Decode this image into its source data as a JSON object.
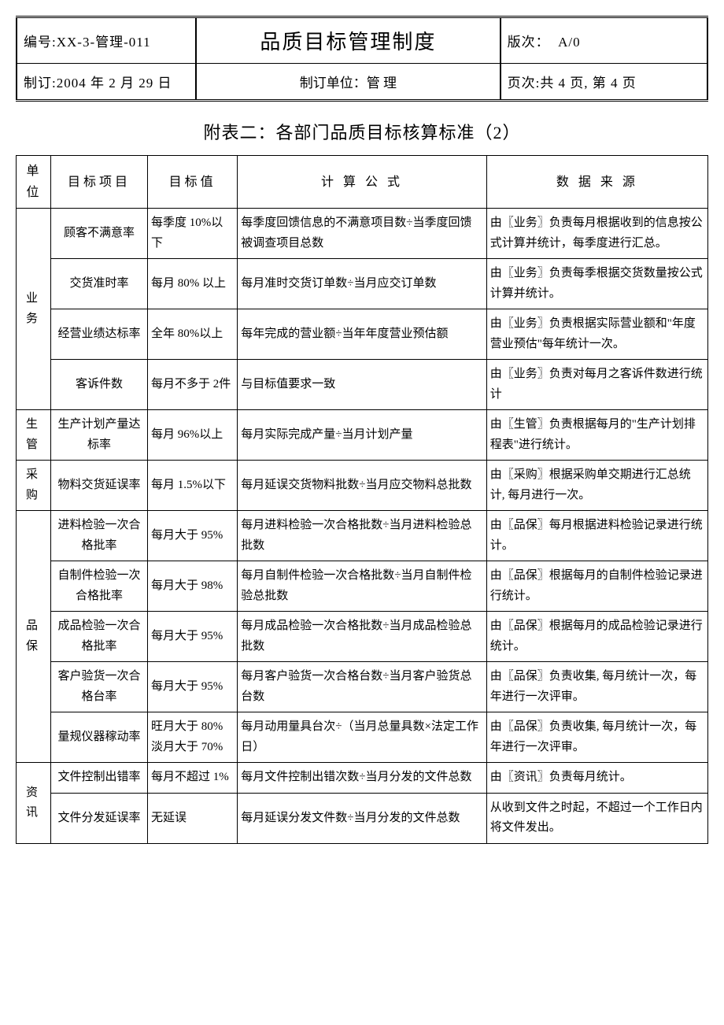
{
  "header": {
    "doc_no_label": "编号:",
    "doc_no": "XX-3-管理-011",
    "title": "品质目标管理制度",
    "version_label": "版次：",
    "version": "A/0",
    "date_label": "制订:",
    "date": "2004 年 2 月 29 日",
    "dept_label": "制订单位：",
    "dept": "管 理",
    "page_label": "页次:",
    "page": "共 4 页, 第 4 页"
  },
  "subtitle": "附表二：各部门品质目标核算标准（2）",
  "columns": {
    "unit": "单 位",
    "item": "目标项目",
    "target": "目标值",
    "formula": "计 算 公 式",
    "source": "数 据 来 源"
  },
  "groups": [
    {
      "unit": "业 务",
      "rows": [
        {
          "item": "顾客不满意率",
          "target": "每季度 10%以下",
          "formula": "每季度回馈信息的不满意项目数÷当季度回馈被调查项目总数",
          "source": "由〖业务〗负责每月根据收到的信息按公式计算并统计，每季度进行汇总。"
        },
        {
          "item": "交货准时率",
          "target": "每月 80% 以上",
          "formula": "每月准时交货订单数÷当月应交订单数",
          "source": "由〖业务〗负责每季根据交货数量按公式计算并统计。"
        },
        {
          "item": "经营业绩达标率",
          "target": "全年 80%以上",
          "formula": "每年完成的营业额÷当年年度营业预估额",
          "source": "由〖业务〗负责根据实际营业额和\"年度营业预估\"每年统计一次。"
        },
        {
          "item": "客诉件数",
          "target": "每月不多于 2件",
          "formula": "与目标值要求一致",
          "source": "由〖业务〗负责对每月之客诉件数进行统计"
        }
      ]
    },
    {
      "unit": "生 管",
      "rows": [
        {
          "item": "生产计划产量达标率",
          "target": "每月 96%以上",
          "formula": "每月实际完成产量÷当月计划产量",
          "source": "由〖生管〗负责根据每月的\"生产计划排程表\"进行统计。"
        }
      ]
    },
    {
      "unit": "采 购",
      "rows": [
        {
          "item": "物料交货延误率",
          "target": "每月 1.5%以下",
          "formula": "每月延误交货物料批数÷当月应交物料总批数",
          "source": "由〖采购〗根据采购单交期进行汇总统计, 每月进行一次。"
        }
      ]
    },
    {
      "unit": "品保",
      "rows": [
        {
          "item": "进料检验一次合格批率",
          "target": "每月大于 95%",
          "formula": "每月进料检验一次合格批数÷当月进料检验总批数",
          "source": "由〖品保〗每月根据进料检验记录进行统计。"
        },
        {
          "item": "自制件检验一次合格批率",
          "target": "每月大于 98%",
          "formula": "每月自制件检验一次合格批数÷当月自制件检验总批数",
          "source": "由〖品保〗根据每月的自制件检验记录进行统计。"
        },
        {
          "item": "成品检验一次合格批率",
          "target": "每月大于 95%",
          "formula": "每月成品检验一次合格批数÷当月成品检验总批数",
          "source": "由〖品保〗根据每月的成品检验记录进行统计。"
        },
        {
          "item": "客户验货一次合格台率",
          "target": "每月大于 95%",
          "formula": "每月客户验货一次合格台数÷当月客户验货总台数",
          "source": "由〖品保〗负责收集, 每月统计一次，每年进行一次评审。"
        },
        {
          "item": "量规仪器稼动率",
          "target": "旺月大于 80% 淡月大于 70%",
          "formula": "每月动用量具台次÷（当月总量具数×法定工作日）",
          "source": "由〖品保〗负责收集, 每月统计一次，每年进行一次评审。"
        }
      ]
    },
    {
      "unit": "资 讯",
      "rows": [
        {
          "item": "文件控制出错率",
          "target": "每月不超过 1%",
          "formula": "每月文件控制出错次数÷当月分发的文件总数",
          "source": "由〖资讯〗负责每月统计。"
        },
        {
          "item": "文件分发延误率",
          "target": "无延误",
          "formula": "每月延误分发文件数÷当月分发的文件总数",
          "source": "从收到文件之时起，不超过一个工作日内将文件发出。"
        }
      ]
    }
  ]
}
